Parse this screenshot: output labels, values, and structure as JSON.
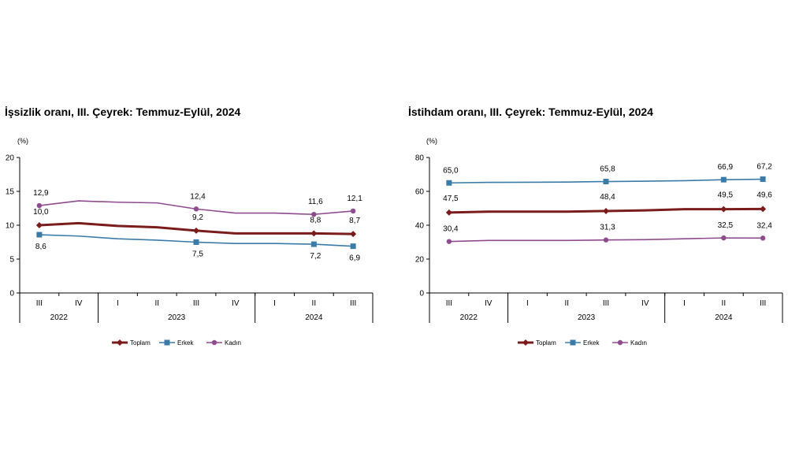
{
  "chart_data": [
    {
      "type": "line",
      "title": "İşsizlik oranı, III. Çeyrek: Temmuz-Eylül, 2024",
      "ylabel": "(%)",
      "ylim": [
        0,
        20
      ],
      "yticks": [
        "0",
        "5",
        "10",
        "15",
        "20"
      ],
      "categories": [
        "III",
        "IV",
        "I",
        "II",
        "III",
        "IV",
        "I",
        "II",
        "III"
      ],
      "years": [
        {
          "label": "2022",
          "start": 0,
          "end": 1
        },
        {
          "label": "2023",
          "start": 2,
          "end": 5
        },
        {
          "label": "2024",
          "start": 6,
          "end": 8
        }
      ],
      "series": [
        {
          "name": "Toplam",
          "color": "#7b1c1c",
          "marker": "diamond",
          "values": [
            10.0,
            10.3,
            9.9,
            9.7,
            9.2,
            8.8,
            8.8,
            8.8,
            8.7
          ],
          "labels": [
            "10,0",
            "",
            "",
            "",
            "9,2",
            "",
            "",
            "8,8",
            "8,7"
          ]
        },
        {
          "name": "Erkek",
          "color": "#3a7ba8",
          "marker": "square",
          "values": [
            8.6,
            8.4,
            8.0,
            7.8,
            7.5,
            7.3,
            7.3,
            7.2,
            6.9
          ],
          "labels": [
            "8,6",
            "",
            "",
            "",
            "7,5",
            "",
            "",
            "7,2",
            "6,9"
          ]
        },
        {
          "name": "Kadın",
          "color": "#8e4b8e",
          "marker": "circle",
          "values": [
            12.9,
            13.6,
            13.4,
            13.3,
            12.4,
            11.8,
            11.8,
            11.6,
            12.1
          ],
          "labels": [
            "12,9",
            "",
            "",
            "",
            "12,4",
            "",
            "",
            "11,6",
            "12,1"
          ]
        }
      ],
      "legend": [
        "Toplam",
        "Erkek",
        "Kadın"
      ],
      "legend_position": "bottom"
    },
    {
      "type": "line",
      "title": "İstihdam oranı, III. Çeyrek: Temmuz-Eylül, 2024",
      "ylabel": "(%)",
      "ylim": [
        0,
        80
      ],
      "yticks": [
        "0",
        "20",
        "40",
        "60",
        "80"
      ],
      "categories": [
        "III",
        "IV",
        "I",
        "II",
        "III",
        "IV",
        "I",
        "II",
        "III"
      ],
      "years": [
        {
          "label": "2022",
          "start": 0,
          "end": 1
        },
        {
          "label": "2023",
          "start": 2,
          "end": 5
        },
        {
          "label": "2024",
          "start": 6,
          "end": 8
        }
      ],
      "series": [
        {
          "name": "Toplam",
          "color": "#7b1c1c",
          "marker": "diamond",
          "values": [
            47.5,
            48.0,
            48.0,
            48.0,
            48.4,
            48.8,
            49.5,
            49.5,
            49.6
          ],
          "labels": [
            "47,5",
            "",
            "",
            "",
            "48,4",
            "",
            "",
            "49,5",
            "49,6"
          ]
        },
        {
          "name": "Erkek",
          "color": "#3a7ba8",
          "marker": "square",
          "values": [
            65.0,
            65.3,
            65.4,
            65.5,
            65.8,
            66.0,
            66.3,
            66.9,
            67.2
          ],
          "labels": [
            "65,0",
            "",
            "",
            "",
            "65,8",
            "",
            "",
            "66,9",
            "67,2"
          ]
        },
        {
          "name": "Kadın",
          "color": "#8e4b8e",
          "marker": "circle",
          "values": [
            30.4,
            31.0,
            31.0,
            31.0,
            31.3,
            31.5,
            32.0,
            32.5,
            32.4
          ],
          "labels": [
            "30,4",
            "",
            "",
            "",
            "31,3",
            "",
            "",
            "32,5",
            "32,4"
          ]
        }
      ],
      "legend": [
        "Toplam",
        "Erkek",
        "Kadın"
      ],
      "legend_position": "bottom"
    }
  ]
}
